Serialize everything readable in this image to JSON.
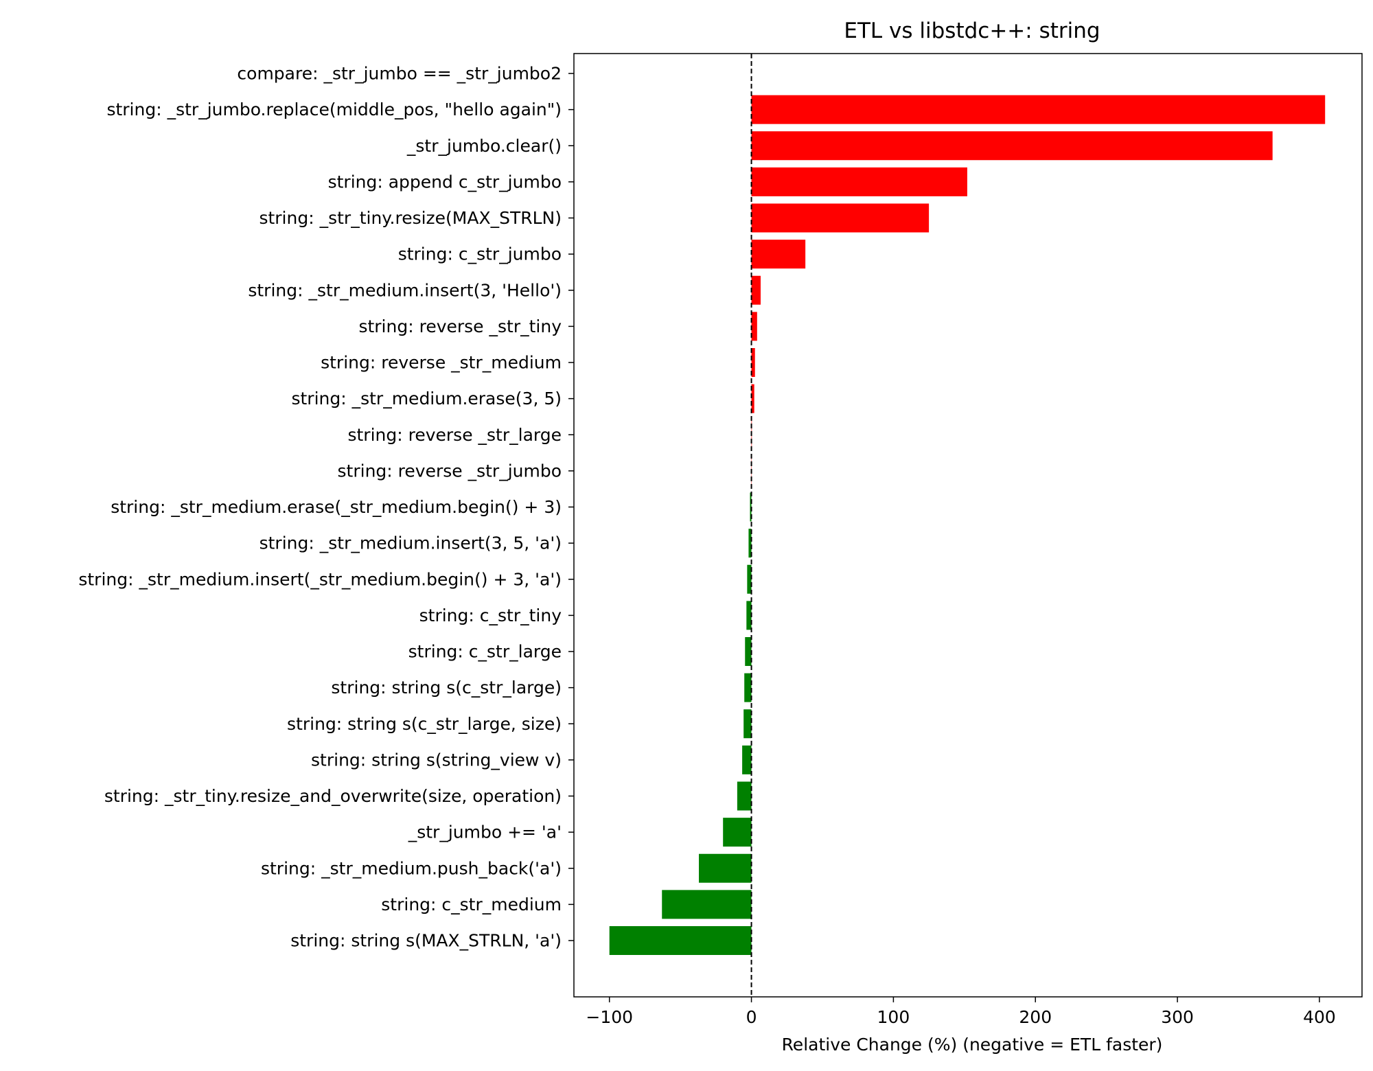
{
  "chart_data": {
    "type": "bar",
    "orientation": "horizontal",
    "title": "ETL vs libstdc++: string",
    "xlabel": "Relative Change (%)  (negative = ETL faster)",
    "ylabel": "",
    "xlim": [
      -125,
      430
    ],
    "xticks": [
      -100,
      0,
      100,
      200,
      300,
      400
    ],
    "xtick_labels": [
      "−100",
      "0",
      "100",
      "200",
      "300",
      "400"
    ],
    "reference_line": {
      "x": 0,
      "style": "dashed",
      "color": "#000000"
    },
    "grid": false,
    "legend": "none",
    "colors": {
      "positive": "#ff0000",
      "negative": "#008000"
    },
    "categories": [
      "compare: _str_jumbo == _str_jumbo2",
      "string: _str_jumbo.replace(middle_pos, \"hello again\")",
      "_str_jumbo.clear()",
      "string: append c_str_jumbo",
      "string: _str_tiny.resize(MAX_STRLN)",
      "string: c_str_jumbo",
      "string: _str_medium.insert(3, 'Hello')",
      "string: reverse _str_tiny",
      "string: reverse _str_medium",
      "string: _str_medium.erase(3, 5)",
      "string: reverse _str_large",
      "string: reverse _str_jumbo",
      "string: _str_medium.erase(_str_medium.begin() + 3)",
      "string: _str_medium.insert(3, 5, 'a')",
      "string: _str_medium.insert(_str_medium.begin() + 3, 'a')",
      "string: c_str_tiny",
      "string: c_str_large",
      "string: string s(c_str_large)",
      "string: string s(c_str_large, size)",
      "string: string s(string_view v)",
      "string: _str_tiny.resize_and_overwrite(size, operation)",
      "_str_jumbo += 'a'",
      "string: _str_medium.push_back('a')",
      "string: c_str_medium",
      "string: string s(MAX_STRLN, 'a')"
    ],
    "values": [
      0,
      404,
      367,
      152,
      125,
      38,
      6.5,
      4,
      2.5,
      2,
      0.3,
      0.2,
      -1,
      -2,
      -3,
      -3.5,
      -4.5,
      -5,
      -5.5,
      -6.5,
      -10,
      -20,
      -37,
      -63,
      -100
    ]
  }
}
